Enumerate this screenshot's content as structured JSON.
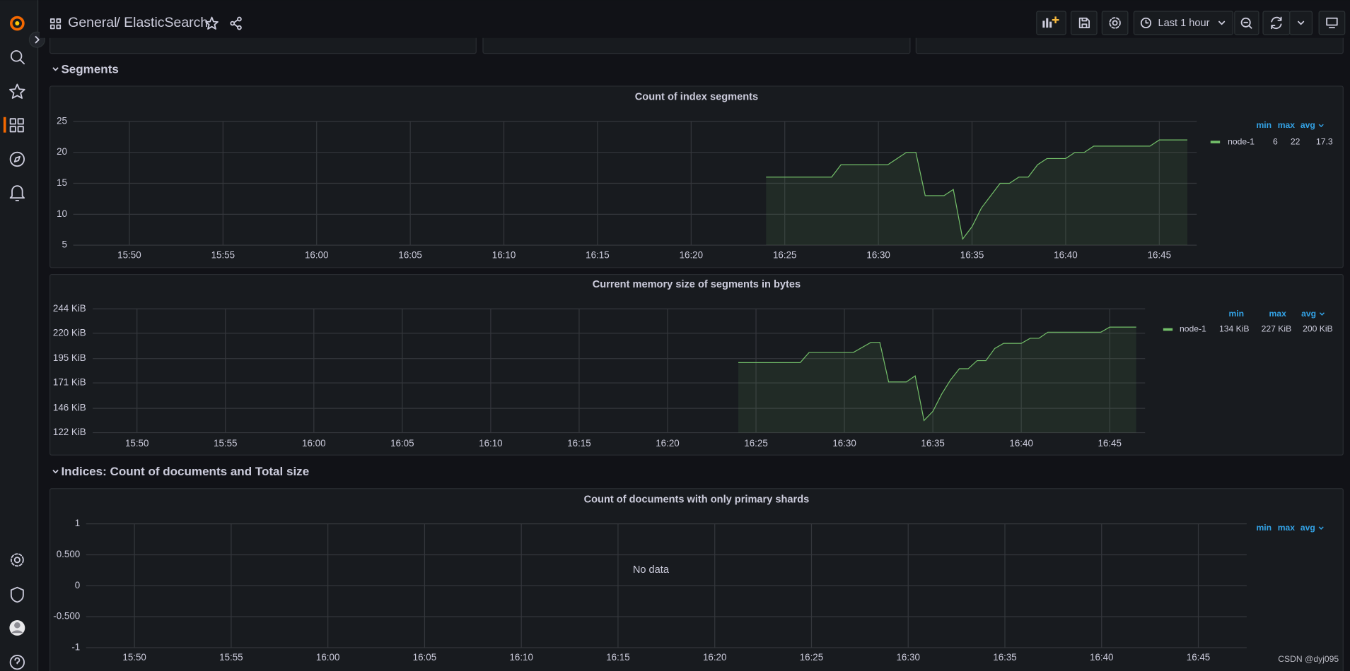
{
  "header": {
    "breadcrumb_folder": "General",
    "breadcrumb_dashboard": "/ ElasticSearch",
    "time_range": "Last 1 hour"
  },
  "sections": [
    "Segments",
    "Indices: Count of documents and Total size"
  ],
  "chart_data": [
    {
      "type": "line",
      "title": "Count of index segments",
      "x": [
        "16:24:00",
        "16:27:30",
        "16:28:00",
        "16:30:30",
        "16:31:30",
        "16:32:00",
        "16:32:30",
        "16:33:30",
        "16:34:00",
        "16:34:30",
        "16:35:00",
        "16:35:30",
        "16:36:30",
        "16:37:00",
        "16:37:30",
        "16:38:00",
        "16:38:30",
        "16:39:00",
        "16:40:00",
        "16:40:30",
        "16:41:00",
        "16:41:30",
        "16:44:30",
        "16:45:00",
        "16:46:30"
      ],
      "series": [
        {
          "name": "node-1",
          "color": "#73bf69",
          "values": [
            16,
            16,
            18,
            18,
            20,
            20,
            13,
            13,
            14,
            6,
            8,
            11,
            15,
            15,
            16,
            16,
            18,
            19,
            19,
            20,
            20,
            21,
            21,
            22,
            22
          ],
          "legend_values": [
            6,
            22,
            17.3
          ]
        }
      ],
      "legend_headers": [
        "min",
        "max",
        "avg"
      ],
      "xlim": [
        "15:47:00",
        "16:47:00"
      ],
      "ylim": [
        5,
        25
      ],
      "xticks": [
        "15:50",
        "15:55",
        "16:00",
        "16:05",
        "16:10",
        "16:15",
        "16:20",
        "16:25",
        "16:30",
        "16:35",
        "16:40",
        "16:45"
      ],
      "yticks": [
        5,
        10,
        15,
        20,
        25
      ],
      "grid": true,
      "fill": true
    },
    {
      "type": "line",
      "title": "Current memory size of segments in bytes",
      "x": [
        "16:24:00",
        "16:27:30",
        "16:28:00",
        "16:30:30",
        "16:31:30",
        "16:32:00",
        "16:32:30",
        "16:33:30",
        "16:34:00",
        "16:34:30",
        "16:35:00",
        "16:35:30",
        "16:36:00",
        "16:36:30",
        "16:37:00",
        "16:37:30",
        "16:38:00",
        "16:38:30",
        "16:39:00",
        "16:40:00",
        "16:40:30",
        "16:41:00",
        "16:41:30",
        "16:44:30",
        "16:45:00",
        "16:46:30"
      ],
      "series": [
        {
          "name": "node-1",
          "color": "#73bf69",
          "values": [
            191,
            191,
            201,
            201,
            211,
            211,
            172,
            172,
            178,
            134,
            143,
            160,
            174,
            185,
            185,
            193,
            193,
            205,
            210,
            210,
            215,
            215,
            221,
            221,
            226,
            226
          ],
          "legend_values": [
            134,
            227,
            200
          ],
          "legend_value_labels": [
            "134 KiB",
            "227 KiB",
            "200 KiB"
          ]
        }
      ],
      "legend_headers": [
        "min",
        "max",
        "avg"
      ],
      "xlim": [
        "15:47:30",
        "16:47:00"
      ],
      "ylim": [
        122,
        244
      ],
      "xticks": [
        "15:50",
        "15:55",
        "16:00",
        "16:05",
        "16:10",
        "16:15",
        "16:20",
        "16:25",
        "16:30",
        "16:35",
        "16:40",
        "16:45"
      ],
      "yticks": [
        {
          "value": 122,
          "label": "122 KiB"
        },
        {
          "value": 146,
          "label": "146 KiB"
        },
        {
          "value": 171,
          "label": "171 KiB"
        },
        {
          "value": 195,
          "label": "195 KiB"
        },
        {
          "value": 220,
          "label": "220 KiB"
        },
        {
          "value": 244,
          "label": "244 KiB"
        }
      ],
      "grid": true,
      "fill": true
    },
    {
      "type": "line",
      "title": "Count of documents with only primary shards",
      "message": "No data",
      "x": [],
      "series": [],
      "legend_headers": [
        "min",
        "max",
        "avg"
      ],
      "xlim": [
        "15:47:30",
        "16:47:30"
      ],
      "ylim": [
        -1,
        1
      ],
      "xticks": [
        "15:50",
        "15:55",
        "16:00",
        "16:05",
        "16:10",
        "16:15",
        "16:20",
        "16:25",
        "16:30",
        "16:35",
        "16:40",
        "16:45"
      ],
      "yticks": [
        -1,
        {
          "value": -0.5,
          "label": "-0.500"
        },
        0,
        {
          "value": 0.5,
          "label": "0.500"
        },
        1
      ],
      "grid": true,
      "fill": true
    }
  ],
  "watermark": "CSDN @dyj095"
}
